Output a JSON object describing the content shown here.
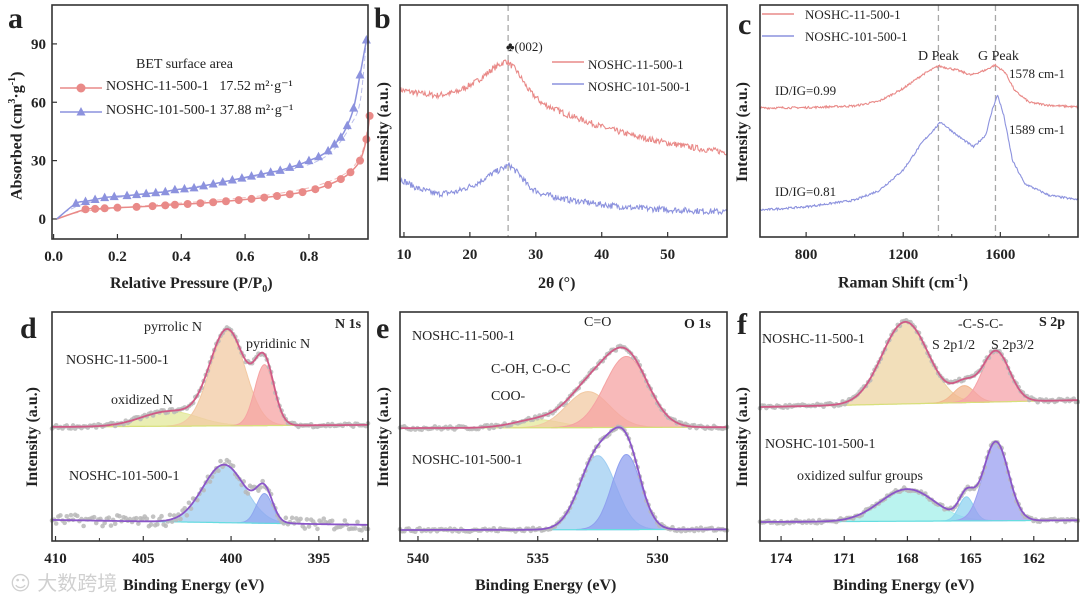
{
  "colors": {
    "red": "#e98a88",
    "blue": "#8c92de",
    "fit": "#b35fae",
    "dots": "#b9b9b9",
    "dash": "#a8a8a8"
  },
  "watermark": "大数跨境",
  "chart_data": [
    {
      "id": "a",
      "type": "line",
      "letter": "a",
      "xlabel": "Relative Pressure (P/P0)",
      "xlabel_main": "Relative Pressure (P/P",
      "xlabel_sub": "0",
      "xlabel_end": ")",
      "ylabel": "Absorbed (cm3·g-1)",
      "ylabel_main": "Absorbed (cm",
      "ylabel_sup1": "3",
      "ylabel_mid": "·g",
      "ylabel_sup2": "-1",
      "ylabel_end": ")",
      "xlim": [
        -0.005,
        0.985
      ],
      "ylim": [
        -10.3,
        110
      ],
      "xticks": [
        0.0,
        0.2,
        0.4,
        0.6,
        0.8
      ],
      "xtick_labels": [
        "0.0",
        "0.2",
        "0.4",
        "0.6",
        "0.8"
      ],
      "yticks": [
        0,
        30,
        60,
        90
      ],
      "ytick_labels": [
        "0",
        "30",
        "60",
        "90"
      ],
      "legend_title": "BET surface area",
      "legend_position": "upper-left",
      "series": [
        {
          "name": "NOSHC-11-500-1",
          "value_label": "17.52 m²·g⁻¹",
          "color": "red",
          "marker": "circle",
          "x": [
            0.01,
            0.1,
            0.13,
            0.16,
            0.2,
            0.26,
            0.31,
            0.35,
            0.38,
            0.42,
            0.46,
            0.5,
            0.54,
            0.58,
            0.62,
            0.66,
            0.7,
            0.74,
            0.78,
            0.82,
            0.86,
            0.9,
            0.93,
            0.96,
            0.98,
            0.99
          ],
          "y": [
            0,
            5,
            5.2,
            5.5,
            5.8,
            6.2,
            6.6,
            7,
            7.3,
            7.7,
            8.1,
            8.6,
            9.1,
            9.7,
            10.3,
            11,
            11.8,
            12.7,
            13.8,
            15.3,
            17.5,
            20.5,
            24,
            30,
            41,
            53
          ],
          "desorption_x": [
            0.99,
            0.97,
            0.94,
            0.9,
            0.85,
            0.8,
            0.7,
            0.6,
            0.5,
            0.4,
            0.3,
            0.2,
            0.1,
            0.04
          ],
          "desorption_y": [
            53,
            36,
            27,
            22,
            18.5,
            16,
            13,
            11,
            9.5,
            8.2,
            7,
            5.6,
            4,
            2
          ]
        },
        {
          "name": "NOSHC-101-500-1",
          "value_label": "37.88 m²·g⁻¹",
          "color": "blue",
          "marker": "triangle",
          "x": [
            0.01,
            0.07,
            0.1,
            0.13,
            0.16,
            0.19,
            0.23,
            0.26,
            0.29,
            0.32,
            0.35,
            0.38,
            0.41,
            0.44,
            0.47,
            0.5,
            0.53,
            0.56,
            0.59,
            0.62,
            0.65,
            0.68,
            0.71,
            0.74,
            0.77,
            0.8,
            0.83,
            0.86,
            0.88,
            0.9,
            0.92,
            0.94,
            0.96,
            0.98
          ],
          "y": [
            0,
            8,
            9,
            10,
            11,
            11.5,
            12,
            12.5,
            13,
            13.5,
            14,
            15,
            15.5,
            16,
            17,
            18,
            19,
            20,
            21,
            22,
            23,
            24,
            25,
            26.5,
            28,
            30,
            32,
            35,
            38.5,
            42,
            48,
            57,
            74,
            92
          ],
          "desorption_x": [
            0.98,
            0.96,
            0.93,
            0.9,
            0.86,
            0.8,
            0.7,
            0.6,
            0.5,
            0.4,
            0.3,
            0.2,
            0.1,
            0.04
          ],
          "desorption_y": [
            92,
            60,
            48,
            40,
            33,
            28,
            24,
            21,
            18,
            15.5,
            13,
            11,
            8,
            4
          ]
        }
      ]
    },
    {
      "id": "b",
      "type": "line",
      "letter": "b",
      "xlabel": "2θ (°)",
      "xlabel_main": "2θ (",
      "xlabel_sup": "o",
      "xlabel_end": ")",
      "ylabel": "Intensity (a.u.)",
      "xlim": [
        9.4,
        59
      ],
      "ylim": [
        0,
        100
      ],
      "xticks": [
        10,
        20,
        30,
        40,
        50
      ],
      "xtick_labels": [
        "10",
        "20",
        "30",
        "40",
        "50"
      ],
      "yticks": [],
      "ytick_labels": [],
      "annotation": "♣(002)",
      "reference_line": 25.8,
      "legend_position": "upper-right",
      "series": [
        {
          "name": "NOSHC-11-500-1",
          "color": "red",
          "x": [
            9.4,
            12,
            15,
            18,
            21,
            23.5,
            25.5,
            27,
            29,
            31,
            35,
            40,
            45,
            50,
            55,
            59
          ],
          "y": [
            63.5,
            62,
            61,
            62.5,
            67,
            72.5,
            76,
            72,
            63,
            57.5,
            52.5,
            47.5,
            43.5,
            40.5,
            38,
            36.5
          ]
        },
        {
          "name": "NOSHC-101-500-1",
          "color": "blue",
          "x": [
            9.4,
            12,
            15,
            18,
            21,
            23.5,
            26,
            27.5,
            29,
            31,
            35,
            40,
            45,
            50,
            55,
            59
          ],
          "y": [
            25,
            21,
            18.5,
            19.5,
            23,
            27.5,
            31,
            27,
            21.5,
            18.5,
            16,
            14,
            12.5,
            11.8,
            11.2,
            10.8
          ]
        }
      ]
    },
    {
      "id": "c",
      "type": "line",
      "letter": "c",
      "xlabel": "Raman Shift (cm-1)",
      "xlabel_main": "Raman Shift (cm",
      "xlabel_sup": "-1",
      "xlabel_end": ")",
      "ylabel": "Intensity (a.u.)",
      "xlim": [
        610,
        1920
      ],
      "ylim": [
        0,
        100
      ],
      "xticks": [
        800,
        1200,
        1600
      ],
      "xtick_labels": [
        "800",
        "1200",
        "1600"
      ],
      "minor_xticks": [
        1000,
        1400,
        1800
      ],
      "yticks": [],
      "ytick_labels": [],
      "reference_lines": [
        1345,
        1580
      ],
      "peak_labels": [
        "D Peak",
        "G Peak"
      ],
      "legend_position": "upper-left",
      "series": [
        {
          "name": "NOSHC-11-500-1",
          "color": "red",
          "ratio_label": "ID/IG=0.99",
          "ratio_value": 0.99,
          "peak_label": "1578 cm-1",
          "peak_position": 1578,
          "x": [
            610,
            800,
            1000,
            1100,
            1200,
            1280,
            1345,
            1420,
            1480,
            1540,
            1578,
            1620,
            1660,
            1720,
            1800,
            1920
          ],
          "y": [
            55.6,
            55.8,
            56.5,
            58.5,
            64,
            70,
            73.7,
            72,
            69.8,
            72,
            74.1,
            71,
            63,
            58,
            56.8,
            56
          ]
        },
        {
          "name": "NOSHC-101-500-1",
          "color": "blue",
          "ratio_label": "ID/IG=0.81",
          "ratio_value": 0.81,
          "peak_label": "1589 cm-1",
          "peak_position": 1589,
          "x": [
            610,
            800,
            1000,
            1100,
            1200,
            1280,
            1355,
            1420,
            1490,
            1540,
            1570,
            1589,
            1615,
            1650,
            1700,
            1800,
            1920
          ],
          "y": [
            11.6,
            13,
            15.9,
            20,
            28.9,
            41,
            49.6,
            44,
            38.8,
            44,
            56,
            61.2,
            52,
            33,
            23,
            18,
            16
          ]
        }
      ]
    },
    {
      "id": "d",
      "type": "line",
      "letter": "d",
      "core_level": "N 1s",
      "xlabel": "Binding Energy (eV)",
      "ylabel": "Intensity (a.u.)",
      "xlim": [
        410.2,
        392.2
      ],
      "ylim": [
        0,
        100
      ],
      "xticks": [
        410,
        405,
        400,
        395
      ],
      "xtick_labels": [
        "410",
        "405",
        "400",
        "395"
      ],
      "minor_xticks": [
        407.5,
        402.5,
        397.5,
        392.5
      ],
      "yticks": [],
      "ytick_labels": [],
      "series": [
        {
          "name": "NOSHC-11-500-1",
          "color": "red",
          "baseline": 49.8,
          "baseline_slope": 0.05,
          "components": [
            {
              "label": "oxidized N",
              "center": 403.5,
              "height": 6.5,
              "sigma": 1.6,
              "fill": "#e3e89a"
            },
            {
              "label": "pyrrolic N",
              "center": 400.2,
              "height": 41.5,
              "sigma": 1.0,
              "fill": "#f2c9a3"
            },
            {
              "label": "pyridinic N",
              "center": 398.1,
              "height": 26.6,
              "sigma": 0.55,
              "fill": "#f5a3a3"
            }
          ]
        },
        {
          "name": "NOSHC-101-500-1",
          "color": "blue",
          "baseline": 9.2,
          "baseline_slope": -0.12,
          "components": [
            {
              "label": "",
              "center": 400.4,
              "height": 25.3,
              "sigma": 1.2,
              "fill": "#9fcdf2"
            },
            {
              "label": "",
              "center": 398.1,
              "height": 13,
              "sigma": 0.45,
              "fill": "#8fa7ef"
            }
          ]
        }
      ]
    },
    {
      "id": "e",
      "type": "line",
      "letter": "e",
      "core_level": "O 1s",
      "xlabel": "Binding Energy (eV)",
      "ylabel": "Intensity (a.u.)",
      "xlim": [
        540.75,
        527.1
      ],
      "ylim": [
        0,
        100
      ],
      "xticks": [
        540,
        535,
        530
      ],
      "xtick_labels": [
        "540",
        "535",
        "530"
      ],
      "minor_xticks": [
        537.5,
        532.5,
        527.5
      ],
      "yticks": [],
      "ytick_labels": [],
      "series": [
        {
          "name": "NOSHC-11-500-1",
          "color": "red",
          "baseline": 49.3,
          "baseline_slope": 0.03,
          "components": [
            {
              "label": "COO-",
              "center": 535.0,
              "height": 3.5,
              "sigma": 1.0,
              "fill": "#e3e89a"
            },
            {
              "label": "C-OH, C-O-C",
              "center": 532.9,
              "height": 15.7,
              "sigma": 0.9,
              "fill": "#f2c9a3"
            },
            {
              "label": "C=O",
              "center": 531.3,
              "height": 31,
              "sigma": 0.9,
              "fill": "#f5a3a3"
            }
          ]
        },
        {
          "name": "NOSHC-101-500-1",
          "color": "blue",
          "baseline": 4.8,
          "baseline_slope": 0.02,
          "components": [
            {
              "label": "",
              "center": 532.5,
              "height": 32.3,
              "sigma": 0.75,
              "fill": "#9fcdf2"
            },
            {
              "label": "",
              "center": 531.3,
              "height": 32.8,
              "sigma": 0.6,
              "fill": "#8fa0ef"
            }
          ]
        }
      ]
    },
    {
      "id": "f",
      "type": "line",
      "letter": "f",
      "core_level": "S 2p",
      "xlabel": "Binding Energy (eV)",
      "ylabel": "Intensity (a.u.)",
      "xlim": [
        175,
        159.9
      ],
      "ylim": [
        0,
        100
      ],
      "xticks": [
        174,
        171,
        168,
        165,
        162
      ],
      "xtick_labels": [
        "174",
        "171",
        "168",
        "165",
        "162"
      ],
      "minor_xticks": [
        172.5,
        169.5,
        166.5,
        163.5,
        160.5
      ],
      "yticks": [],
      "ytick_labels": [],
      "group_label": "-C-S-C-",
      "series": [
        {
          "name": "NOSHC-11-500-1",
          "color": "red",
          "baseline": 58.5,
          "baseline_slope": 0.2,
          "components": [
            {
              "label": "",
              "center": 168.1,
              "height": 35.8,
              "sigma": 1.1,
              "fill": "#eed4a3"
            },
            {
              "label": "S 2p1/2",
              "center": 165.3,
              "height": 7.4,
              "sigma": 0.5,
              "fill": "#f2b78f"
            },
            {
              "label": "S 2p3/2",
              "center": 163.8,
              "height": 22.3,
              "sigma": 0.65,
              "fill": "#f5a3a9"
            }
          ]
        },
        {
          "name": "NOSHC-101-500-1",
          "color": "blue",
          "baseline": 8.3,
          "baseline_slope": 0.05,
          "components": [
            {
              "label": "oxidized sulfur groups",
              "center": 168.0,
              "height": 14,
              "sigma": 1.3,
              "fill": "#a3efea"
            },
            {
              "label": "",
              "center": 165.2,
              "height": 10.5,
              "sigma": 0.35,
              "fill": "#8fd3f0"
            },
            {
              "label": "",
              "center": 163.8,
              "height": 34.5,
              "sigma": 0.6,
              "fill": "#9a9ff0"
            }
          ]
        }
      ]
    }
  ]
}
